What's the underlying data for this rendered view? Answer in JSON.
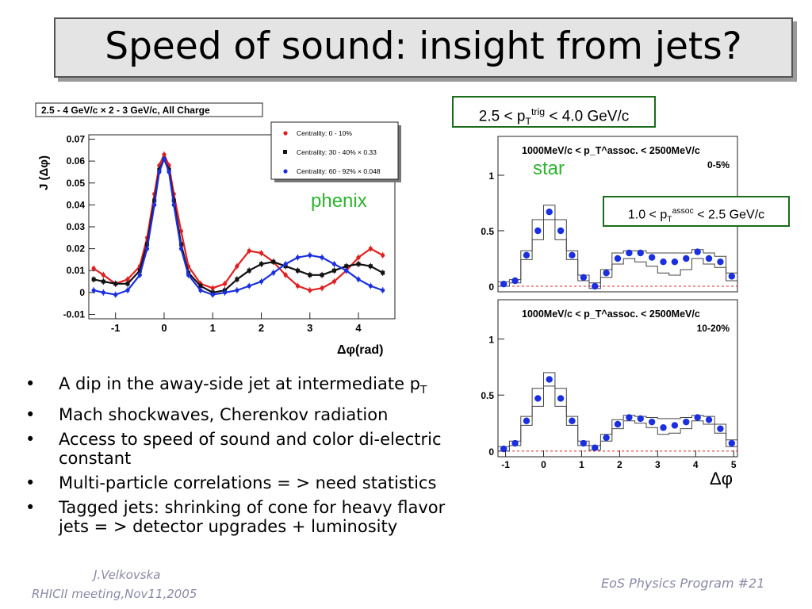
{
  "slide": {
    "title": "Speed of sound: insight from jets?",
    "labels": {
      "phenix": "phenix",
      "star": "star",
      "trig_box": {
        "text": "2.5 < p",
        "sub": "T",
        "sup": "trig",
        "text2": " < 4.0 GeV/c"
      },
      "assoc_box": {
        "text": "1.0 < p",
        "sub": "T",
        "sup": "assoc",
        "text2": " < 2.5 GeV/c"
      }
    },
    "bullets": [
      {
        "text": "A dip in the away-side jet at intermediate p",
        "sub": "T"
      },
      {
        "text": "Mach shockwaves, Cherenkov radiation"
      },
      {
        "text": "Access to speed of sound and color di-electric constant"
      },
      {
        "text": "Multi-particle correlations = > need statistics"
      },
      {
        "text": "Tagged jets: shrinking of cone for heavy flavor jets  = > detector upgrades + luminosity"
      }
    ],
    "footer": {
      "author": "J.Velkovska",
      "meeting": "RHICII meeting,Nov11,2005",
      "program": "EoS Physics Program  #21"
    }
  },
  "chart_data": [
    {
      "type": "scatter",
      "title": "2.5 - 4 GeV/c × 2 - 3 GeV/c,  All Charge",
      "xlabel": "Δφ(rad)",
      "ylabel": "J (Δφ)",
      "xlim": [
        -1.55,
        4.75
      ],
      "ylim": [
        -0.012,
        0.072
      ],
      "x_ticks": [
        "-1",
        "0",
        "1",
        "2",
        "3",
        "4"
      ],
      "x_tick_values": [
        -1,
        0,
        1,
        2,
        3,
        4
      ],
      "y_ticks": [
        "-0.01",
        "0",
        "0.01",
        "0.02",
        "0.03",
        "0.04",
        "0.05",
        "0.06",
        "0.07"
      ],
      "y_tick_values": [
        -0.01,
        0,
        0.01,
        0.02,
        0.03,
        0.04,
        0.05,
        0.06,
        0.07
      ],
      "legend_position": "top-right",
      "x": [
        -1.45,
        -1.25,
        -1.0,
        -0.75,
        -0.5,
        -0.35,
        -0.2,
        -0.1,
        0.0,
        0.1,
        0.2,
        0.35,
        0.5,
        0.75,
        1.0,
        1.25,
        1.5,
        1.75,
        2.0,
        2.25,
        2.5,
        2.75,
        3.0,
        3.25,
        3.5,
        3.75,
        4.0,
        4.25,
        4.5
      ],
      "series": [
        {
          "name": "Centrality:  0 - 10%",
          "color": "#e02020",
          "marker": "circle",
          "values": [
            0.011,
            0.008,
            0.004,
            0.006,
            0.012,
            0.025,
            0.045,
            0.058,
            0.063,
            0.058,
            0.045,
            0.028,
            0.012,
            0.004,
            0.002,
            0.004,
            0.012,
            0.019,
            0.018,
            0.014,
            0.008,
            0.003,
            0.001,
            0.002,
            0.005,
            0.01,
            0.016,
            0.02,
            0.017
          ]
        },
        {
          "name": "Centrality: 30 - 40% × 0.33",
          "color": "#111111",
          "marker": "square",
          "values": [
            0.006,
            0.005,
            0.004,
            0.004,
            0.01,
            0.022,
            0.042,
            0.056,
            0.061,
            0.056,
            0.042,
            0.022,
            0.009,
            0.003,
            0.0,
            0.001,
            0.006,
            0.01,
            0.013,
            0.014,
            0.012,
            0.01,
            0.008,
            0.008,
            0.01,
            0.012,
            0.013,
            0.012,
            0.009
          ]
        },
        {
          "name": "Centrality: 60 - 92% × 0.048",
          "color": "#1a2fe0",
          "marker": "circle",
          "values": [
            0.001,
            0.0,
            -0.001,
            0.001,
            0.008,
            0.02,
            0.04,
            0.055,
            0.061,
            0.055,
            0.04,
            0.02,
            0.008,
            0.001,
            -0.001,
            0.0,
            0.001,
            0.003,
            0.005,
            0.009,
            0.013,
            0.016,
            0.017,
            0.016,
            0.013,
            0.01,
            0.006,
            0.003,
            0.001
          ]
        }
      ]
    },
    {
      "type": "scatter",
      "title": "1000MeV/c < p_T^assoc. < 2500MeV/c",
      "panel_label": "0-5%",
      "xlim": [
        -1.2,
        5.1
      ],
      "ylim": [
        -0.05,
        1.35
      ],
      "y_ticks": [
        "0",
        "0.5",
        "1"
      ],
      "y_tick_values": [
        0,
        0.5,
        1
      ],
      "x": [
        -1.05,
        -0.75,
        -0.45,
        -0.15,
        0.15,
        0.45,
        0.75,
        1.05,
        1.35,
        1.65,
        1.95,
        2.25,
        2.55,
        2.85,
        3.15,
        3.45,
        3.75,
        4.05,
        4.35,
        4.65,
        4.95
      ],
      "series": [
        {
          "name": "",
          "color": "#1a2fe0",
          "marker": "circle",
          "values": [
            0.02,
            0.05,
            0.28,
            0.5,
            0.67,
            0.5,
            0.28,
            0.08,
            0.0,
            0.12,
            0.25,
            0.3,
            0.3,
            0.26,
            0.22,
            0.22,
            0.25,
            0.31,
            0.25,
            0.22,
            0.09
          ]
        }
      ],
      "systematic_band_upper": [
        0.04,
        0.06,
        0.32,
        0.6,
        0.73,
        0.6,
        0.32,
        0.1,
        0.03,
        0.15,
        0.3,
        0.32,
        0.32,
        0.3,
        0.3,
        0.3,
        0.3,
        0.33,
        0.3,
        0.27,
        0.12
      ],
      "systematic_band_lower": [
        0.0,
        0.03,
        0.24,
        0.42,
        0.6,
        0.42,
        0.24,
        0.05,
        -0.02,
        0.08,
        0.2,
        0.25,
        0.22,
        0.18,
        0.12,
        0.1,
        0.15,
        0.25,
        0.2,
        0.17,
        0.05
      ]
    },
    {
      "type": "scatter",
      "title": "1000MeV/c < p_T^assoc. < 2500MeV/c",
      "panel_label": "10-20%",
      "xlabel": "Δφ",
      "xlim": [
        -1.2,
        5.1
      ],
      "ylim": [
        -0.05,
        1.35
      ],
      "x_ticks": [
        "-1",
        "0",
        "1",
        "2",
        "3",
        "4",
        "5"
      ],
      "x_tick_values": [
        -1,
        0,
        1,
        2,
        3,
        4,
        5
      ],
      "y_ticks": [
        "0",
        "0.5",
        "1"
      ],
      "y_tick_values": [
        0,
        0.5,
        1
      ],
      "x": [
        -1.05,
        -0.75,
        -0.45,
        -0.15,
        0.15,
        0.45,
        0.75,
        1.05,
        1.35,
        1.65,
        1.95,
        2.25,
        2.55,
        2.85,
        3.15,
        3.45,
        3.75,
        4.05,
        4.35,
        4.65,
        4.95
      ],
      "series": [
        {
          "name": "",
          "color": "#1a2fe0",
          "marker": "circle",
          "values": [
            0.02,
            0.07,
            0.27,
            0.47,
            0.64,
            0.47,
            0.27,
            0.07,
            0.03,
            0.12,
            0.24,
            0.3,
            0.29,
            0.26,
            0.21,
            0.23,
            0.26,
            0.3,
            0.28,
            0.2,
            0.07
          ]
        }
      ],
      "systematic_band_upper": [
        0.04,
        0.09,
        0.31,
        0.56,
        0.7,
        0.56,
        0.31,
        0.09,
        0.05,
        0.15,
        0.28,
        0.32,
        0.31,
        0.3,
        0.29,
        0.29,
        0.3,
        0.32,
        0.31,
        0.24,
        0.1
      ],
      "systematic_band_lower": [
        0.0,
        0.05,
        0.23,
        0.4,
        0.58,
        0.4,
        0.23,
        0.05,
        0.01,
        0.09,
        0.2,
        0.27,
        0.25,
        0.21,
        0.15,
        0.16,
        0.2,
        0.27,
        0.24,
        0.16,
        0.04
      ]
    }
  ]
}
